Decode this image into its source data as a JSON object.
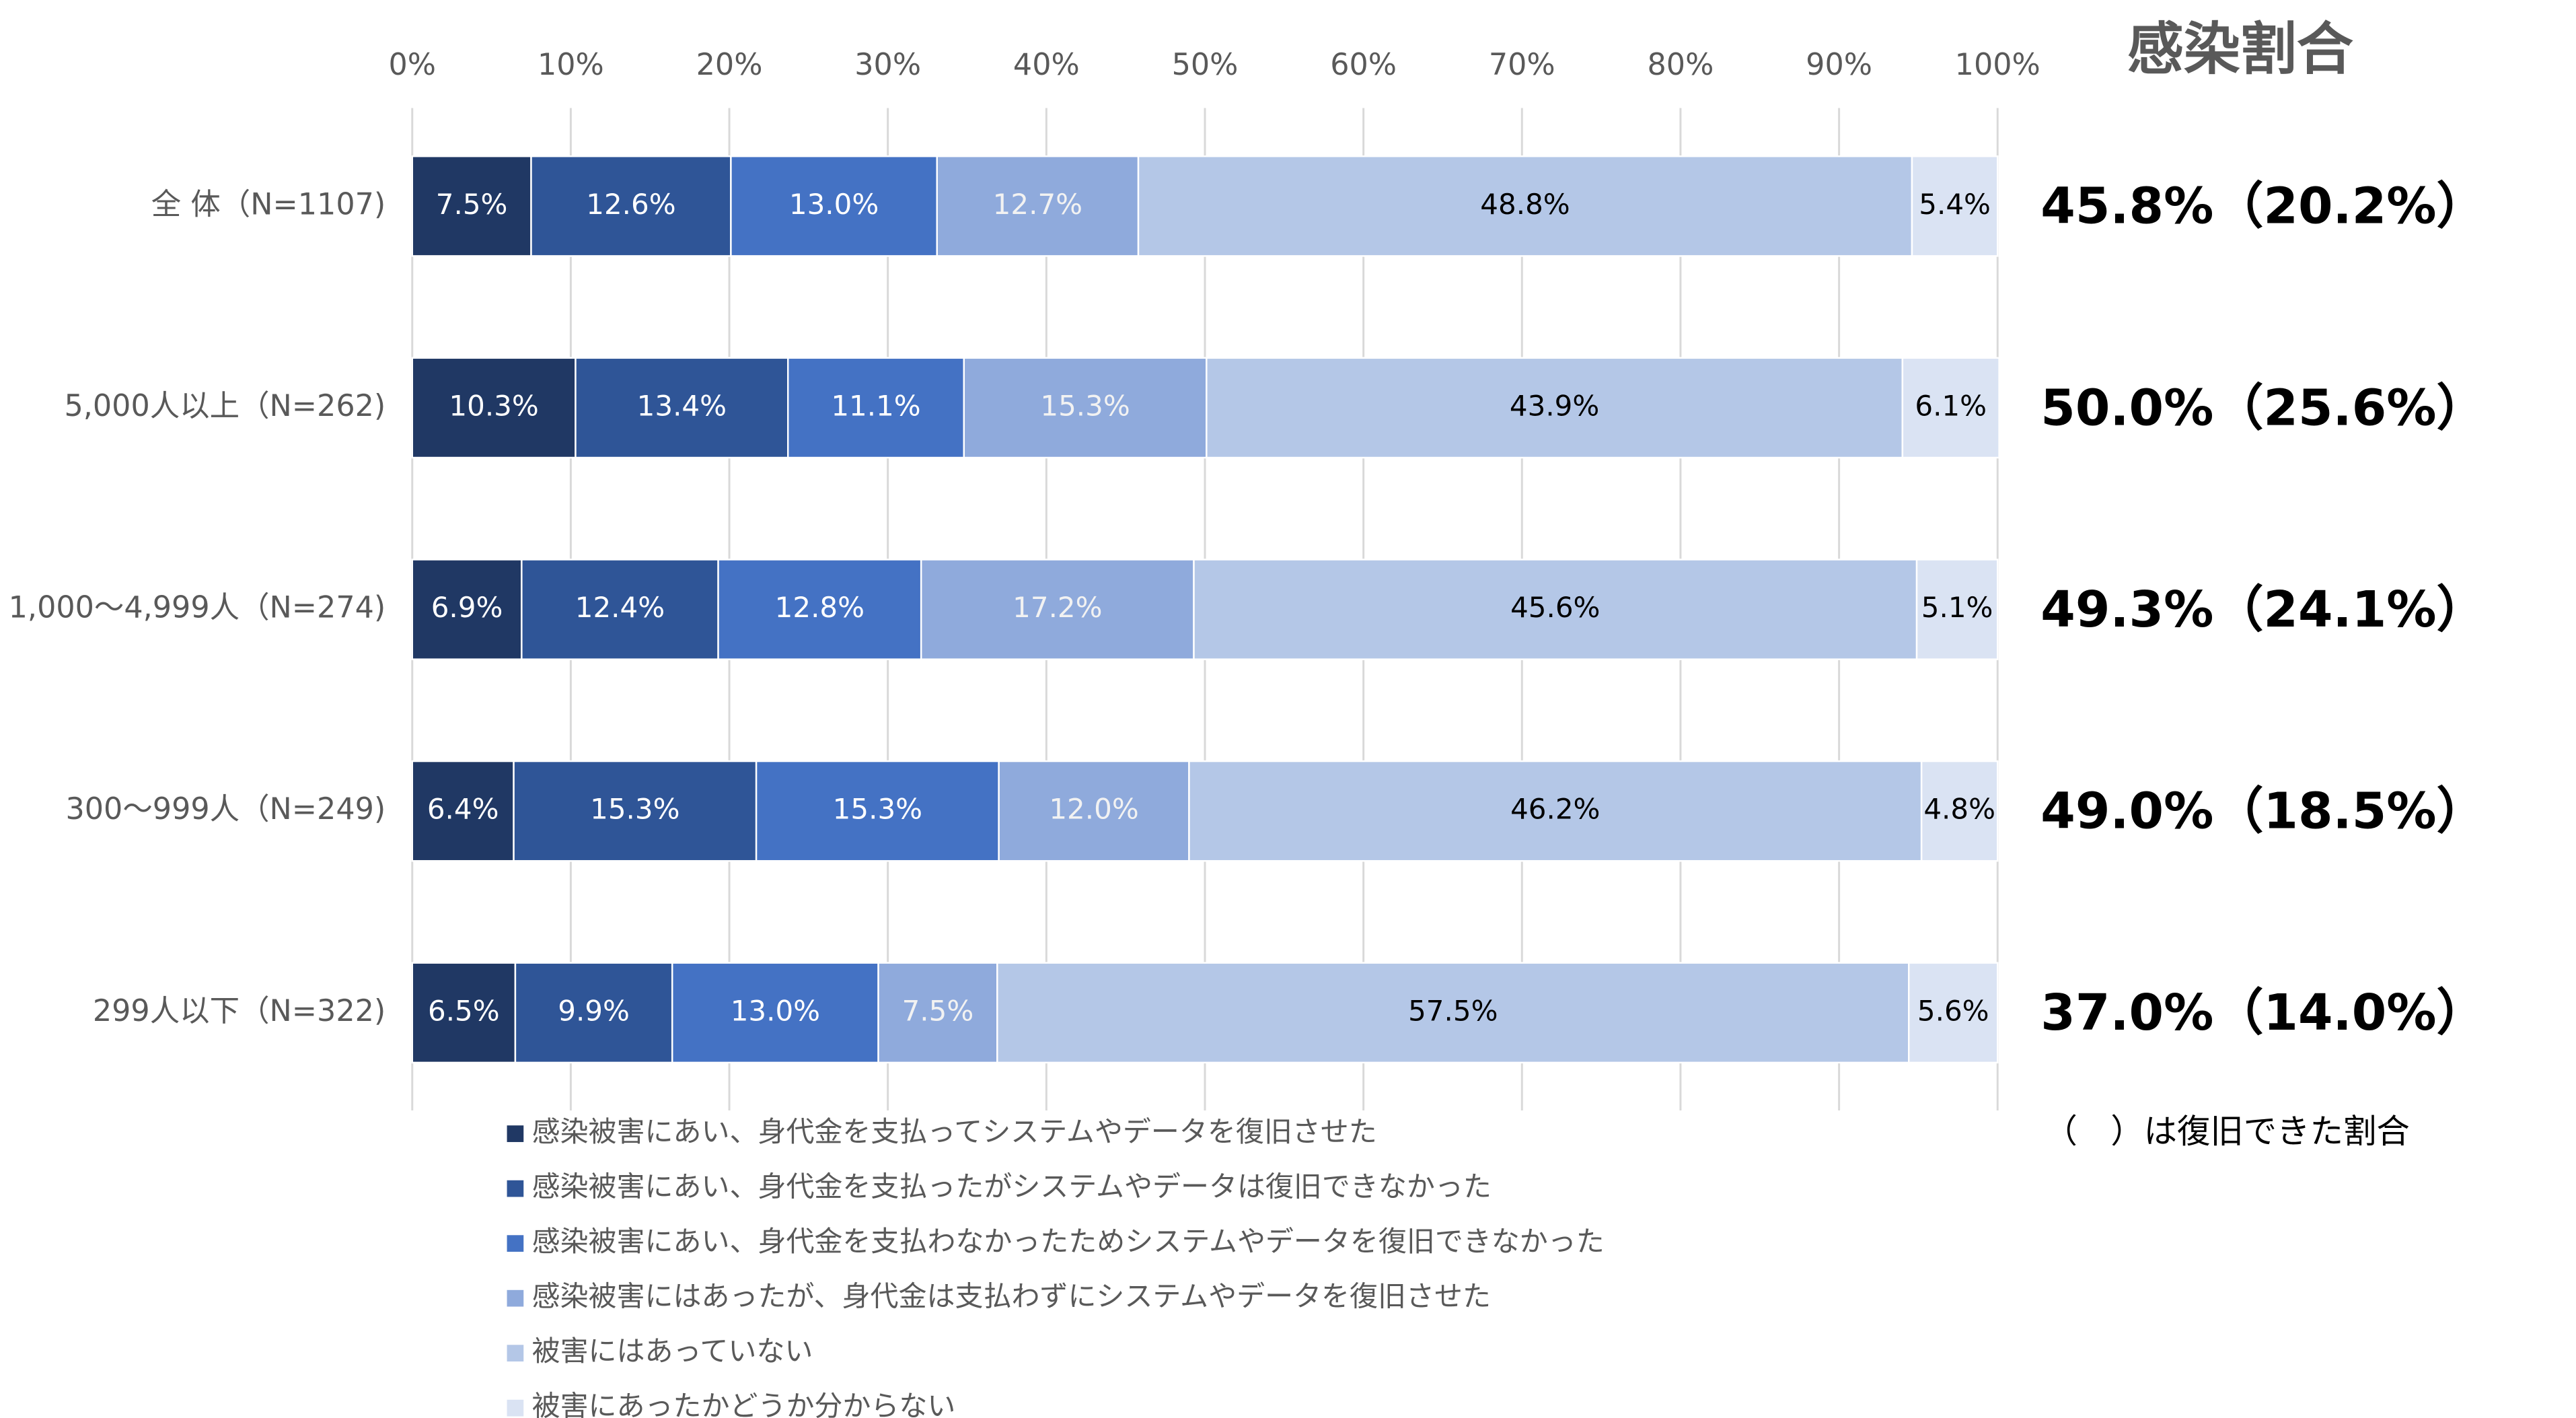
{
  "chart_data": {
    "type": "stacked_bar_horizontal",
    "categories": [
      "全 体（N=1107)",
      "5,000人以上（N=262)",
      "1,000～4,999人（N=274)",
      "300～999人（N=249)",
      "299人以下（N=322)"
    ],
    "series": [
      {
        "name": "感染被害にあい、身代金を支払ってシステムやデータを復旧させた",
        "color": "#203864",
        "label_color": "#ffffff",
        "values": [
          7.5,
          10.3,
          6.9,
          6.4,
          6.5
        ],
        "value_labels": [
          "7.5%",
          "10.3%",
          "6.9%",
          "6.4%",
          "6.5%"
        ]
      },
      {
        "name": "感染被害にあい、身代金を支払ったがシステムやデータは復旧できなかった",
        "color": "#2f5597",
        "label_color": "#ffffff",
        "values": [
          12.6,
          13.4,
          12.4,
          15.3,
          9.9
        ],
        "value_labels": [
          "12.6%",
          "13.4%",
          "12.4%",
          "15.3%",
          "9.9%"
        ]
      },
      {
        "name": "感染被害にあい、身代金を支払わなかったためシステムやデータを復旧できなかった",
        "color": "#4472c4",
        "label_color": "#ffffff",
        "values": [
          13.0,
          11.1,
          12.8,
          15.3,
          13.0
        ],
        "value_labels": [
          "13.0%",
          "11.1%",
          "12.8%",
          "15.3%",
          "13.0%"
        ]
      },
      {
        "name": "感染被害にはあったが、身代金は支払わずにシステムやデータを復旧させた",
        "color": "#8faadc",
        "label_color": "#f2f2f2",
        "values": [
          12.7,
          15.3,
          17.2,
          12.0,
          7.5
        ],
        "value_labels": [
          "12.7%",
          "15.3%",
          "17.2%",
          "12.0%",
          "7.5%"
        ]
      },
      {
        "name": "被害にはあっていない",
        "color": "#b4c7e7",
        "label_color": "#000000",
        "values": [
          48.8,
          43.9,
          45.6,
          46.2,
          57.5
        ],
        "value_labels": [
          "48.8%",
          "43.9%",
          "45.6%",
          "46.2%",
          "57.5%"
        ]
      },
      {
        "name": "被害にあったかどうか分からない",
        "color": "#dae3f3",
        "label_color": "#000000",
        "values": [
          5.4,
          6.1,
          5.1,
          4.8,
          5.6
        ],
        "value_labels": [
          "5.4%",
          "6.1%",
          "5.1%",
          "4.8%",
          "5.6%"
        ]
      }
    ],
    "xlim": [
      0,
      100
    ],
    "xticks": [
      {
        "value": 0,
        "label": "0%"
      },
      {
        "value": 10,
        "label": "10%"
      },
      {
        "value": 20,
        "label": "20%"
      },
      {
        "value": 30,
        "label": "30%"
      },
      {
        "value": 40,
        "label": "40%"
      },
      {
        "value": 50,
        "label": "50%"
      },
      {
        "value": 60,
        "label": "60%"
      },
      {
        "value": 70,
        "label": "70%"
      },
      {
        "value": 80,
        "label": "80%"
      },
      {
        "value": 90,
        "label": "90%"
      },
      {
        "value": 100,
        "label": "100%"
      }
    ],
    "grid": true,
    "annotation_title": "感染割合",
    "annotations": [
      "45.8%（20.2%）",
      "50.0%（25.6%）",
      "49.3%（24.1%）",
      "49.0%（18.5%）",
      "37.0%（14.0%）"
    ],
    "annotation_note": "（　）は復旧できた割合"
  }
}
